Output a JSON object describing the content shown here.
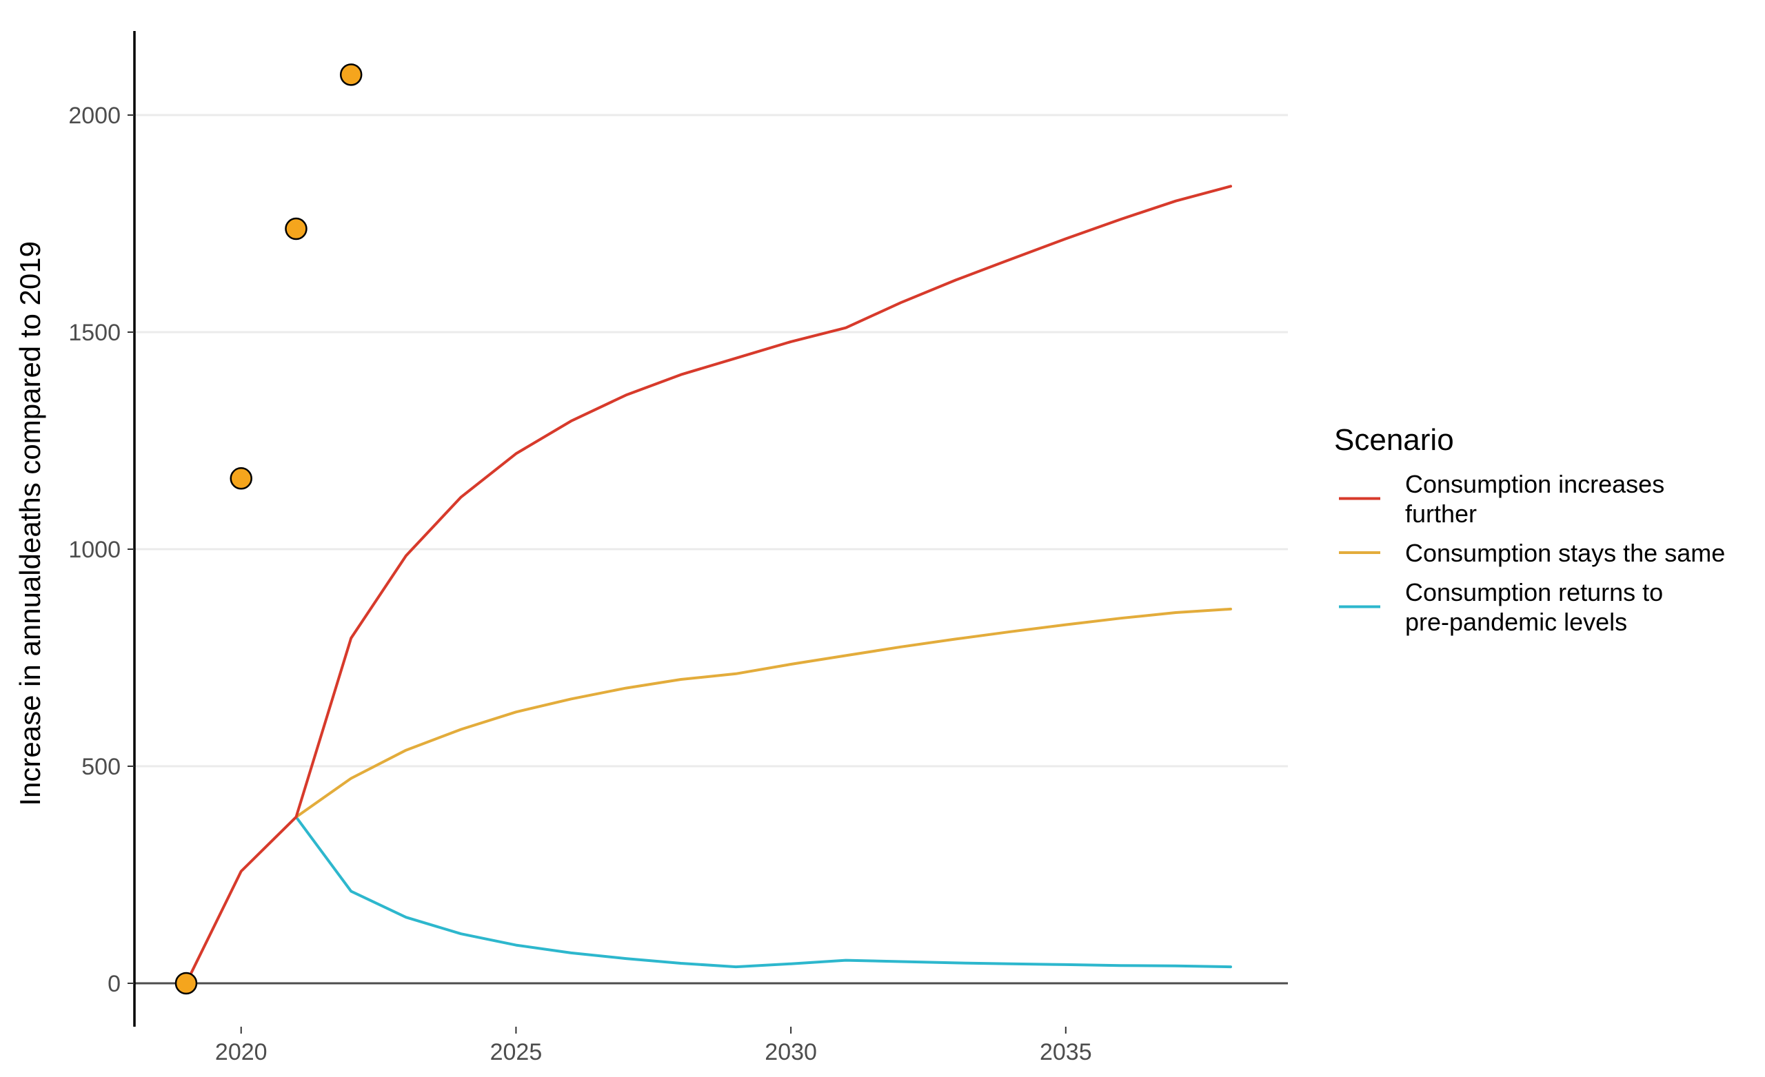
{
  "chart_data": {
    "type": "line",
    "ylabel": "Increase in annualdeaths compared to 2019",
    "xlabel": "",
    "xlim": [
      2018,
      2039
    ],
    "ylim": [
      -100,
      2200
    ],
    "x_ticks": [
      2020,
      2025,
      2030,
      2035
    ],
    "y_ticks": [
      0,
      500,
      1000,
      1500,
      2000
    ],
    "grid": "horizontal-major",
    "legend": {
      "title": "Scenario",
      "position": "right"
    },
    "series": [
      {
        "name": "Consumption increases further",
        "legend_lines": [
          "Consumption increases",
          "further"
        ],
        "color": "#d73a2b",
        "x": [
          2019,
          2020,
          2021,
          2022,
          2023,
          2024,
          2025,
          2026,
          2027,
          2028,
          2029,
          2030,
          2031,
          2032,
          2033,
          2034,
          2035,
          2036,
          2037,
          2038
        ],
        "values": [
          0,
          258,
          383,
          795,
          985,
          1120,
          1220,
          1295,
          1355,
          1402,
          1440,
          1478,
          1510,
          1568,
          1620,
          1668,
          1715,
          1760,
          1802,
          1836
        ]
      },
      {
        "name": "Consumption stays the same",
        "legend_lines": [
          "Consumption stays the same"
        ],
        "color": "#e3ac3b",
        "x": [
          2021,
          2022,
          2023,
          2024,
          2025,
          2026,
          2027,
          2028,
          2029,
          2030,
          2031,
          2032,
          2033,
          2034,
          2035,
          2036,
          2037,
          2038
        ],
        "values": [
          383,
          472,
          537,
          585,
          625,
          655,
          680,
          700,
          713,
          735,
          755,
          775,
          793,
          810,
          826,
          841,
          854,
          862
        ]
      },
      {
        "name": "Consumption returns to pre-pandemic levels",
        "legend_lines": [
          "Consumption returns to",
          "pre-pandemic levels"
        ],
        "color": "#2db7cd",
        "x": [
          2021,
          2022,
          2023,
          2024,
          2025,
          2026,
          2027,
          2028,
          2029,
          2030,
          2031,
          2032,
          2033,
          2034,
          2035,
          2036,
          2037,
          2038
        ],
        "values": [
          383,
          212,
          152,
          114,
          88,
          70,
          57,
          46,
          38,
          45,
          53,
          50,
          47,
          45,
          43,
          41,
          40,
          38
        ]
      }
    ],
    "points": {
      "color": "#f5a51d",
      "stroke": "#000000",
      "x": [
        2019,
        2020,
        2021,
        2022
      ],
      "values": [
        0,
        1163,
        1738,
        2093
      ]
    }
  }
}
